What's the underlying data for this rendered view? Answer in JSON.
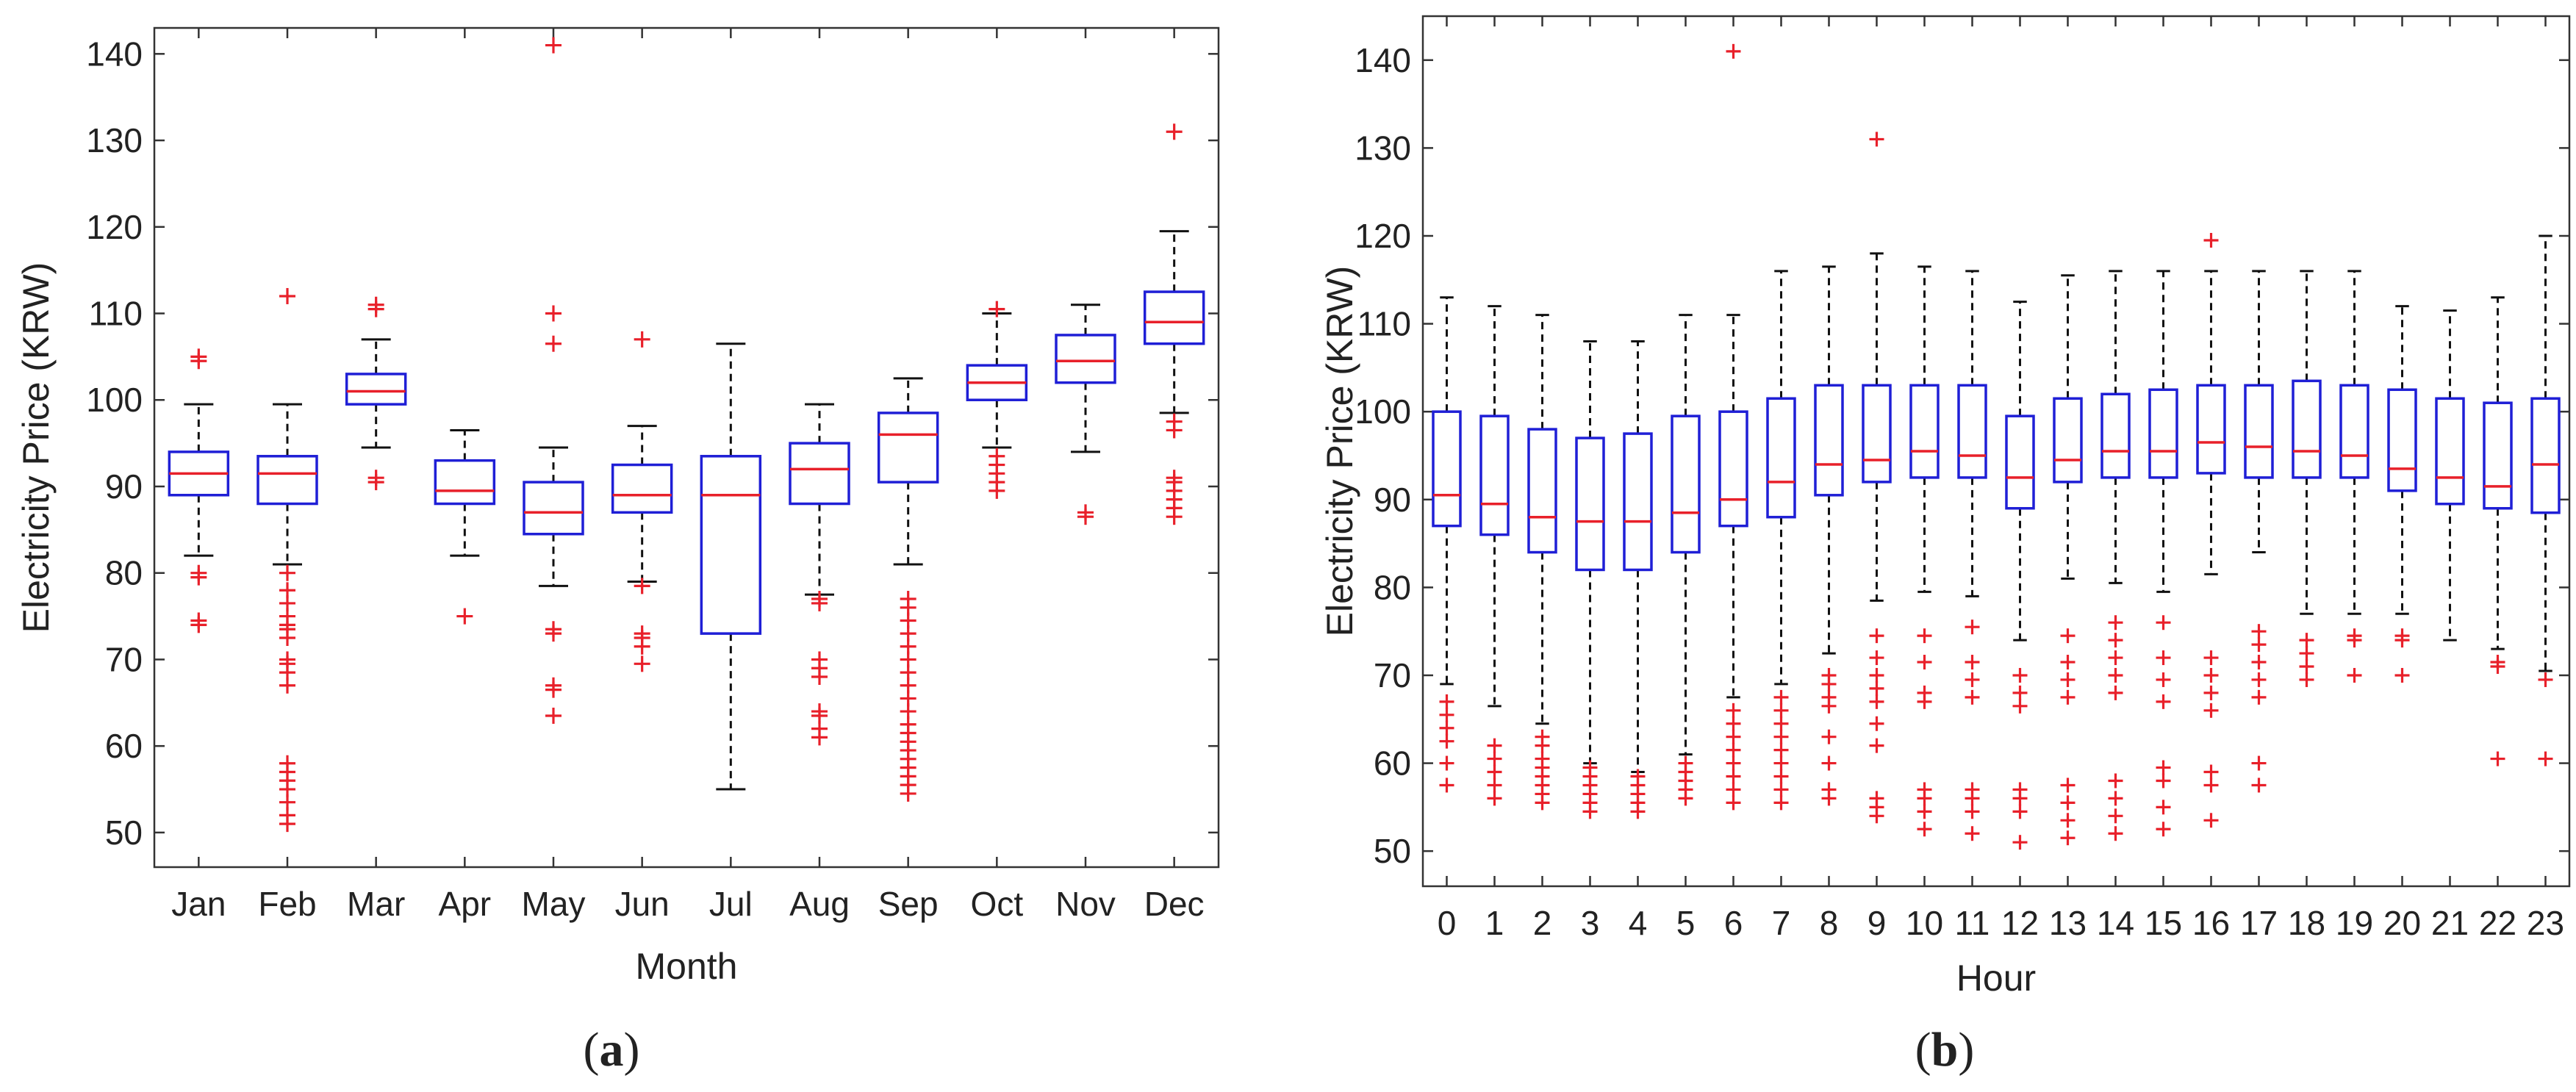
{
  "colors": {
    "box": "#1f1fd6",
    "median": "#e8202a",
    "outlier": "#e8202a",
    "whisker": "#111111",
    "axis": "#333333"
  },
  "chart_data": [
    {
      "type": "boxplot",
      "panel_label": {
        "open": "(",
        "letter": "a",
        "close": ")"
      },
      "xlabel": "Month",
      "ylabel": "Electricity Price (KRW)",
      "ylim": [
        46,
        143
      ],
      "yticks": [
        50,
        60,
        70,
        80,
        90,
        100,
        110,
        120,
        130,
        140
      ],
      "categories": [
        "Jan",
        "Feb",
        "Mar",
        "Apr",
        "May",
        "Jun",
        "Jul",
        "Aug",
        "Sep",
        "Oct",
        "Nov",
        "Dec"
      ],
      "boxes": [
        {
          "q1": 89,
          "median": 91.5,
          "q3": 94,
          "whisker_low": 82,
          "whisker_high": 99.5,
          "outliers": [
            74,
            74.5,
            79.5,
            80,
            104.5,
            105
          ]
        },
        {
          "q1": 88,
          "median": 91.5,
          "q3": 93.5,
          "whisker_low": 81,
          "whisker_high": 99.5,
          "outliers": [
            51,
            52,
            53.5,
            55,
            56,
            57,
            58,
            67,
            68.5,
            69.5,
            70,
            72.5,
            73.5,
            74,
            75,
            76.5,
            78,
            80,
            112
          ]
        },
        {
          "q1": 99.5,
          "median": 101,
          "q3": 103,
          "whisker_low": 94.5,
          "whisker_high": 107,
          "outliers": [
            90.5,
            91,
            110.5,
            111
          ]
        },
        {
          "q1": 88,
          "median": 89.5,
          "q3": 93,
          "whisker_low": 82,
          "whisker_high": 96.5,
          "outliers": [
            75
          ]
        },
        {
          "q1": 84.5,
          "median": 87,
          "q3": 90.5,
          "whisker_low": 78.5,
          "whisker_high": 94.5,
          "outliers": [
            63.5,
            66.5,
            67,
            73,
            73.5,
            106.5,
            110,
            141
          ]
        },
        {
          "q1": 87,
          "median": 89,
          "q3": 92.5,
          "whisker_low": 79,
          "whisker_high": 97,
          "outliers": [
            69.5,
            71.5,
            72.5,
            73,
            78.5,
            107
          ]
        },
        {
          "q1": 73,
          "median": 89,
          "q3": 93.5,
          "whisker_low": 55,
          "whisker_high": 106.5,
          "outliers": []
        },
        {
          "q1": 88,
          "median": 92,
          "q3": 95,
          "whisker_low": 77.5,
          "whisker_high": 99.5,
          "outliers": [
            61,
            62,
            63.5,
            64,
            68,
            69,
            70,
            76.5,
            77
          ]
        },
        {
          "q1": 90.5,
          "median": 96,
          "q3": 98.5,
          "whisker_low": 81,
          "whisker_high": 102.5,
          "outliers": [
            54.5,
            55.5,
            56.5,
            57.5,
            58.5,
            59.5,
            60.5,
            61.5,
            62.5,
            64,
            65.5,
            67,
            68.5,
            70,
            71.5,
            73,
            74.5,
            76,
            77
          ]
        },
        {
          "q1": 100,
          "median": 102,
          "q3": 104,
          "whisker_low": 94.5,
          "whisker_high": 110,
          "outliers": [
            89.5,
            90.5,
            91.5,
            92.5,
            93.5,
            110.5
          ]
        },
        {
          "q1": 102,
          "median": 104.5,
          "q3": 107.5,
          "whisker_low": 94,
          "whisker_high": 111,
          "outliers": [
            86.5,
            87
          ]
        },
        {
          "q1": 106.5,
          "median": 109,
          "q3": 112.5,
          "whisker_low": 98.5,
          "whisker_high": 119.5,
          "outliers": [
            86.5,
            87.5,
            88.5,
            89.5,
            90.5,
            91,
            96.5,
            97.5,
            131
          ]
        }
      ]
    },
    {
      "type": "boxplot",
      "panel_label": {
        "open": "(",
        "letter": "b",
        "close": ")"
      },
      "xlabel": "Hour",
      "ylabel": "Electricity Price (KRW)",
      "ylim": [
        46,
        145
      ],
      "yticks": [
        50,
        60,
        70,
        80,
        90,
        100,
        110,
        120,
        130,
        140
      ],
      "categories": [
        "0",
        "1",
        "2",
        "3",
        "4",
        "5",
        "6",
        "7",
        "8",
        "9",
        "10",
        "11",
        "12",
        "13",
        "14",
        "15",
        "16",
        "17",
        "18",
        "19",
        "20",
        "21",
        "22",
        "23"
      ],
      "boxes": [
        {
          "q1": 87,
          "median": 90.5,
          "q3": 100,
          "whisker_low": 69,
          "whisker_high": 113,
          "outliers": [
            57.5,
            60,
            62.5,
            64,
            65.5,
            67
          ]
        },
        {
          "q1": 86,
          "median": 89.5,
          "q3": 99.5,
          "whisker_low": 66.5,
          "whisker_high": 112,
          "outliers": [
            56,
            57.5,
            59,
            60.5,
            62
          ]
        },
        {
          "q1": 84,
          "median": 88,
          "q3": 98,
          "whisker_low": 64.5,
          "whisker_high": 111,
          "outliers": [
            55.5,
            56.5,
            57.5,
            58.5,
            59.5,
            60.5,
            62,
            63
          ]
        },
        {
          "q1": 82,
          "median": 87.5,
          "q3": 97,
          "whisker_low": 60,
          "whisker_high": 108,
          "outliers": [
            54.5,
            55.5,
            56.5,
            57.5,
            58.5,
            59.5
          ]
        },
        {
          "q1": 82,
          "median": 87.5,
          "q3": 97.5,
          "whisker_low": 59,
          "whisker_high": 108,
          "outliers": [
            54.5,
            55.5,
            56.5,
            57.5,
            58.5
          ]
        },
        {
          "q1": 84,
          "median": 88.5,
          "q3": 99.5,
          "whisker_low": 61,
          "whisker_high": 111,
          "outliers": [
            56,
            57,
            58,
            59,
            60
          ]
        },
        {
          "q1": 87,
          "median": 90,
          "q3": 100,
          "whisker_low": 67.5,
          "whisker_high": 111,
          "outliers": [
            55.5,
            57,
            58.5,
            60,
            61.5,
            63,
            64.5,
            66,
            141
          ]
        },
        {
          "q1": 88,
          "median": 92,
          "q3": 101.5,
          "whisker_low": 69,
          "whisker_high": 116,
          "outliers": [
            55.5,
            57,
            58.5,
            60,
            61.5,
            63,
            64.5,
            66,
            67.5
          ]
        },
        {
          "q1": 90.5,
          "median": 94,
          "q3": 103,
          "whisker_low": 72.5,
          "whisker_high": 116.5,
          "outliers": [
            56,
            57,
            60,
            63,
            66.5,
            67.5,
            69,
            70
          ]
        },
        {
          "q1": 92,
          "median": 94.5,
          "q3": 103,
          "whisker_low": 78.5,
          "whisker_high": 118,
          "outliers": [
            54,
            55,
            56,
            62,
            64.5,
            67,
            68.5,
            70,
            72,
            74.5,
            131
          ]
        },
        {
          "q1": 92.5,
          "median": 95.5,
          "q3": 103,
          "whisker_low": 79.5,
          "whisker_high": 116.5,
          "outliers": [
            52.5,
            54.5,
            56,
            57,
            67,
            68,
            71.5,
            74.5
          ]
        },
        {
          "q1": 92.5,
          "median": 95,
          "q3": 103,
          "whisker_low": 79,
          "whisker_high": 116,
          "outliers": [
            52,
            54.5,
            56,
            57,
            67.5,
            69.5,
            71.5,
            75.5
          ]
        },
        {
          "q1": 89,
          "median": 92.5,
          "q3": 99.5,
          "whisker_low": 74,
          "whisker_high": 112.5,
          "outliers": [
            51,
            54.5,
            56,
            57,
            66.5,
            68,
            70
          ]
        },
        {
          "q1": 92,
          "median": 94.5,
          "q3": 101.5,
          "whisker_low": 81,
          "whisker_high": 115.5,
          "outliers": [
            51.5,
            53.5,
            55.5,
            57.5,
            67.5,
            69.5,
            71.5,
            74.5
          ]
        },
        {
          "q1": 92.5,
          "median": 95.5,
          "q3": 102,
          "whisker_low": 80.5,
          "whisker_high": 116,
          "outliers": [
            52,
            54,
            56,
            58,
            68,
            70,
            72,
            74,
            76
          ]
        },
        {
          "q1": 92.5,
          "median": 95.5,
          "q3": 102.5,
          "whisker_low": 79.5,
          "whisker_high": 116,
          "outliers": [
            52.5,
            55,
            58,
            59.5,
            67,
            69.5,
            72,
            76
          ]
        },
        {
          "q1": 93,
          "median": 96.5,
          "q3": 103,
          "whisker_low": 81.5,
          "whisker_high": 116,
          "outliers": [
            53.5,
            57.5,
            59,
            66,
            68,
            70,
            72,
            119.5
          ]
        },
        {
          "q1": 92.5,
          "median": 96,
          "q3": 103,
          "whisker_low": 84,
          "whisker_high": 116,
          "outliers": [
            57.5,
            60,
            67.5,
            69.5,
            71.5,
            73.5,
            75
          ]
        },
        {
          "q1": 92.5,
          "median": 95.5,
          "q3": 103.5,
          "whisker_low": 77,
          "whisker_high": 116,
          "outliers": [
            69.5,
            71,
            72.5,
            74
          ]
        },
        {
          "q1": 92.5,
          "median": 95,
          "q3": 103,
          "whisker_low": 77,
          "whisker_high": 116,
          "outliers": [
            70,
            74,
            74.5
          ]
        },
        {
          "q1": 91,
          "median": 93.5,
          "q3": 102.5,
          "whisker_low": 77,
          "whisker_high": 112,
          "outliers": [
            70,
            74,
            74.5
          ]
        },
        {
          "q1": 89.5,
          "median": 92.5,
          "q3": 101.5,
          "whisker_low": 74,
          "whisker_high": 111.5,
          "outliers": []
        },
        {
          "q1": 89,
          "median": 91.5,
          "q3": 101,
          "whisker_low": 73,
          "whisker_high": 113,
          "outliers": [
            60.5,
            71,
            71.5
          ]
        },
        {
          "q1": 88.5,
          "median": 94,
          "q3": 101.5,
          "whisker_low": 70.5,
          "whisker_high": 120,
          "outliers": [
            60.5,
            69.5
          ]
        }
      ]
    }
  ]
}
